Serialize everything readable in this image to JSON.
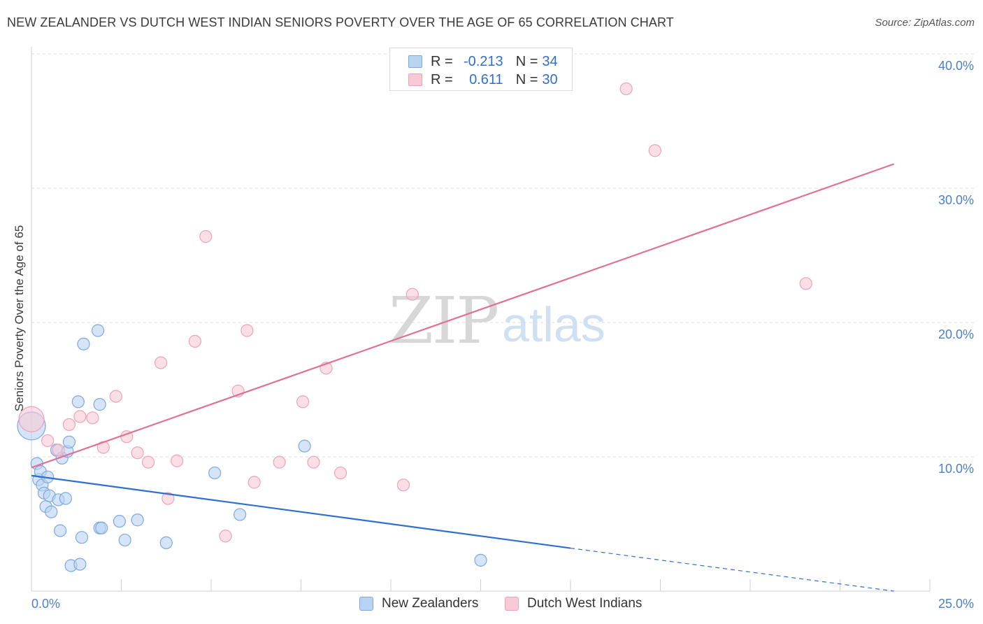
{
  "title": "NEW ZEALANDER VS DUTCH WEST INDIAN SENIORS POVERTY OVER THE AGE OF 65 CORRELATION CHART",
  "source": "Source: ZipAtlas.com",
  "watermark": {
    "zip": "ZIP",
    "atlas": "atlas"
  },
  "colors": {
    "blue_fill": "#b9d3f2",
    "blue_stroke": "#7ea8df",
    "blue_line": "#2e6fd0",
    "pink_fill": "#f8c9d6",
    "pink_stroke": "#eba3b8",
    "pink_line": "#e07096",
    "value_text": "#2f6fcf",
    "grid": "#dddddd"
  },
  "legend": {
    "series": [
      {
        "r_label": "R =",
        "r_value": "-0.213",
        "n_label": "N =",
        "n_value": "34"
      },
      {
        "r_label": "R =",
        "r_value": "0.611",
        "n_label": "N =",
        "n_value": "30"
      }
    ]
  },
  "chart_data": {
    "type": "scatter",
    "title": "NEW ZEALANDER VS DUTCH WEST INDIAN SENIORS POVERTY OVER THE AGE OF 65 CORRELATION CHART",
    "xlabel": "",
    "ylabel": "Seniors Poverty Over the Age of 65",
    "xlim": [
      0,
      25
    ],
    "ylim": [
      0,
      40
    ],
    "x_tick_labels": [
      "0.0%",
      "25.0%"
    ],
    "y_ticks": [
      10,
      20,
      30,
      40
    ],
    "y_tick_labels": [
      "10.0%",
      "20.0%",
      "30.0%",
      "40.0%"
    ],
    "grid": true,
    "legend_position": "top-center",
    "series": [
      {
        "name": "New Zealanders",
        "r": -0.213,
        "n": 34,
        "points": [
          [
            0.0,
            12.3
          ],
          [
            0.15,
            9.5
          ],
          [
            0.2,
            8.3
          ],
          [
            0.25,
            8.9
          ],
          [
            0.3,
            7.9
          ],
          [
            0.35,
            7.3
          ],
          [
            0.4,
            6.3
          ],
          [
            0.45,
            8.5
          ],
          [
            0.5,
            7.1
          ],
          [
            0.55,
            5.9
          ],
          [
            0.7,
            10.5
          ],
          [
            0.75,
            6.8
          ],
          [
            0.8,
            4.5
          ],
          [
            0.85,
            9.9
          ],
          [
            0.95,
            6.9
          ],
          [
            1.0,
            10.4
          ],
          [
            1.05,
            11.1
          ],
          [
            1.1,
            1.9
          ],
          [
            1.3,
            14.1
          ],
          [
            1.35,
            2.0
          ],
          [
            1.4,
            4.0
          ],
          [
            1.45,
            18.4
          ],
          [
            1.85,
            19.4
          ],
          [
            1.9,
            13.9
          ],
          [
            1.9,
            4.7
          ],
          [
            1.95,
            4.7
          ],
          [
            2.45,
            5.2
          ],
          [
            2.6,
            3.8
          ],
          [
            2.95,
            5.3
          ],
          [
            3.75,
            3.6
          ],
          [
            5.1,
            8.8
          ],
          [
            5.8,
            5.7
          ],
          [
            7.6,
            10.8
          ],
          [
            12.5,
            2.3
          ]
        ]
      },
      {
        "name": "Dutch West Indians",
        "r": 0.611,
        "n": 30,
        "points": [
          [
            0.0,
            12.8
          ],
          [
            0.45,
            11.2
          ],
          [
            0.75,
            10.5
          ],
          [
            1.05,
            12.4
          ],
          [
            1.35,
            13.0
          ],
          [
            1.7,
            12.9
          ],
          [
            2.0,
            10.7
          ],
          [
            2.35,
            14.5
          ],
          [
            2.65,
            11.5
          ],
          [
            2.95,
            10.3
          ],
          [
            3.25,
            9.6
          ],
          [
            3.6,
            17.0
          ],
          [
            3.8,
            6.9
          ],
          [
            4.05,
            9.7
          ],
          [
            4.55,
            18.6
          ],
          [
            4.85,
            26.4
          ],
          [
            5.4,
            4.1
          ],
          [
            5.75,
            14.9
          ],
          [
            6.0,
            19.4
          ],
          [
            6.2,
            8.1
          ],
          [
            6.9,
            9.6
          ],
          [
            7.55,
            14.1
          ],
          [
            7.85,
            9.6
          ],
          [
            8.2,
            16.6
          ],
          [
            8.6,
            8.8
          ],
          [
            10.35,
            7.9
          ],
          [
            10.6,
            22.1
          ],
          [
            16.55,
            37.4
          ],
          [
            17.35,
            32.8
          ],
          [
            21.55,
            22.9
          ]
        ]
      }
    ],
    "trend_lines": [
      {
        "series": "New Zealanders",
        "solid_from": [
          0,
          8.6
        ],
        "solid_to": [
          15,
          3.2
        ],
        "dashed_to": [
          24.0,
          0.0
        ]
      },
      {
        "series": "Dutch West Indians",
        "from": [
          0,
          9.2
        ],
        "to": [
          24.0,
          31.8
        ]
      }
    ]
  }
}
